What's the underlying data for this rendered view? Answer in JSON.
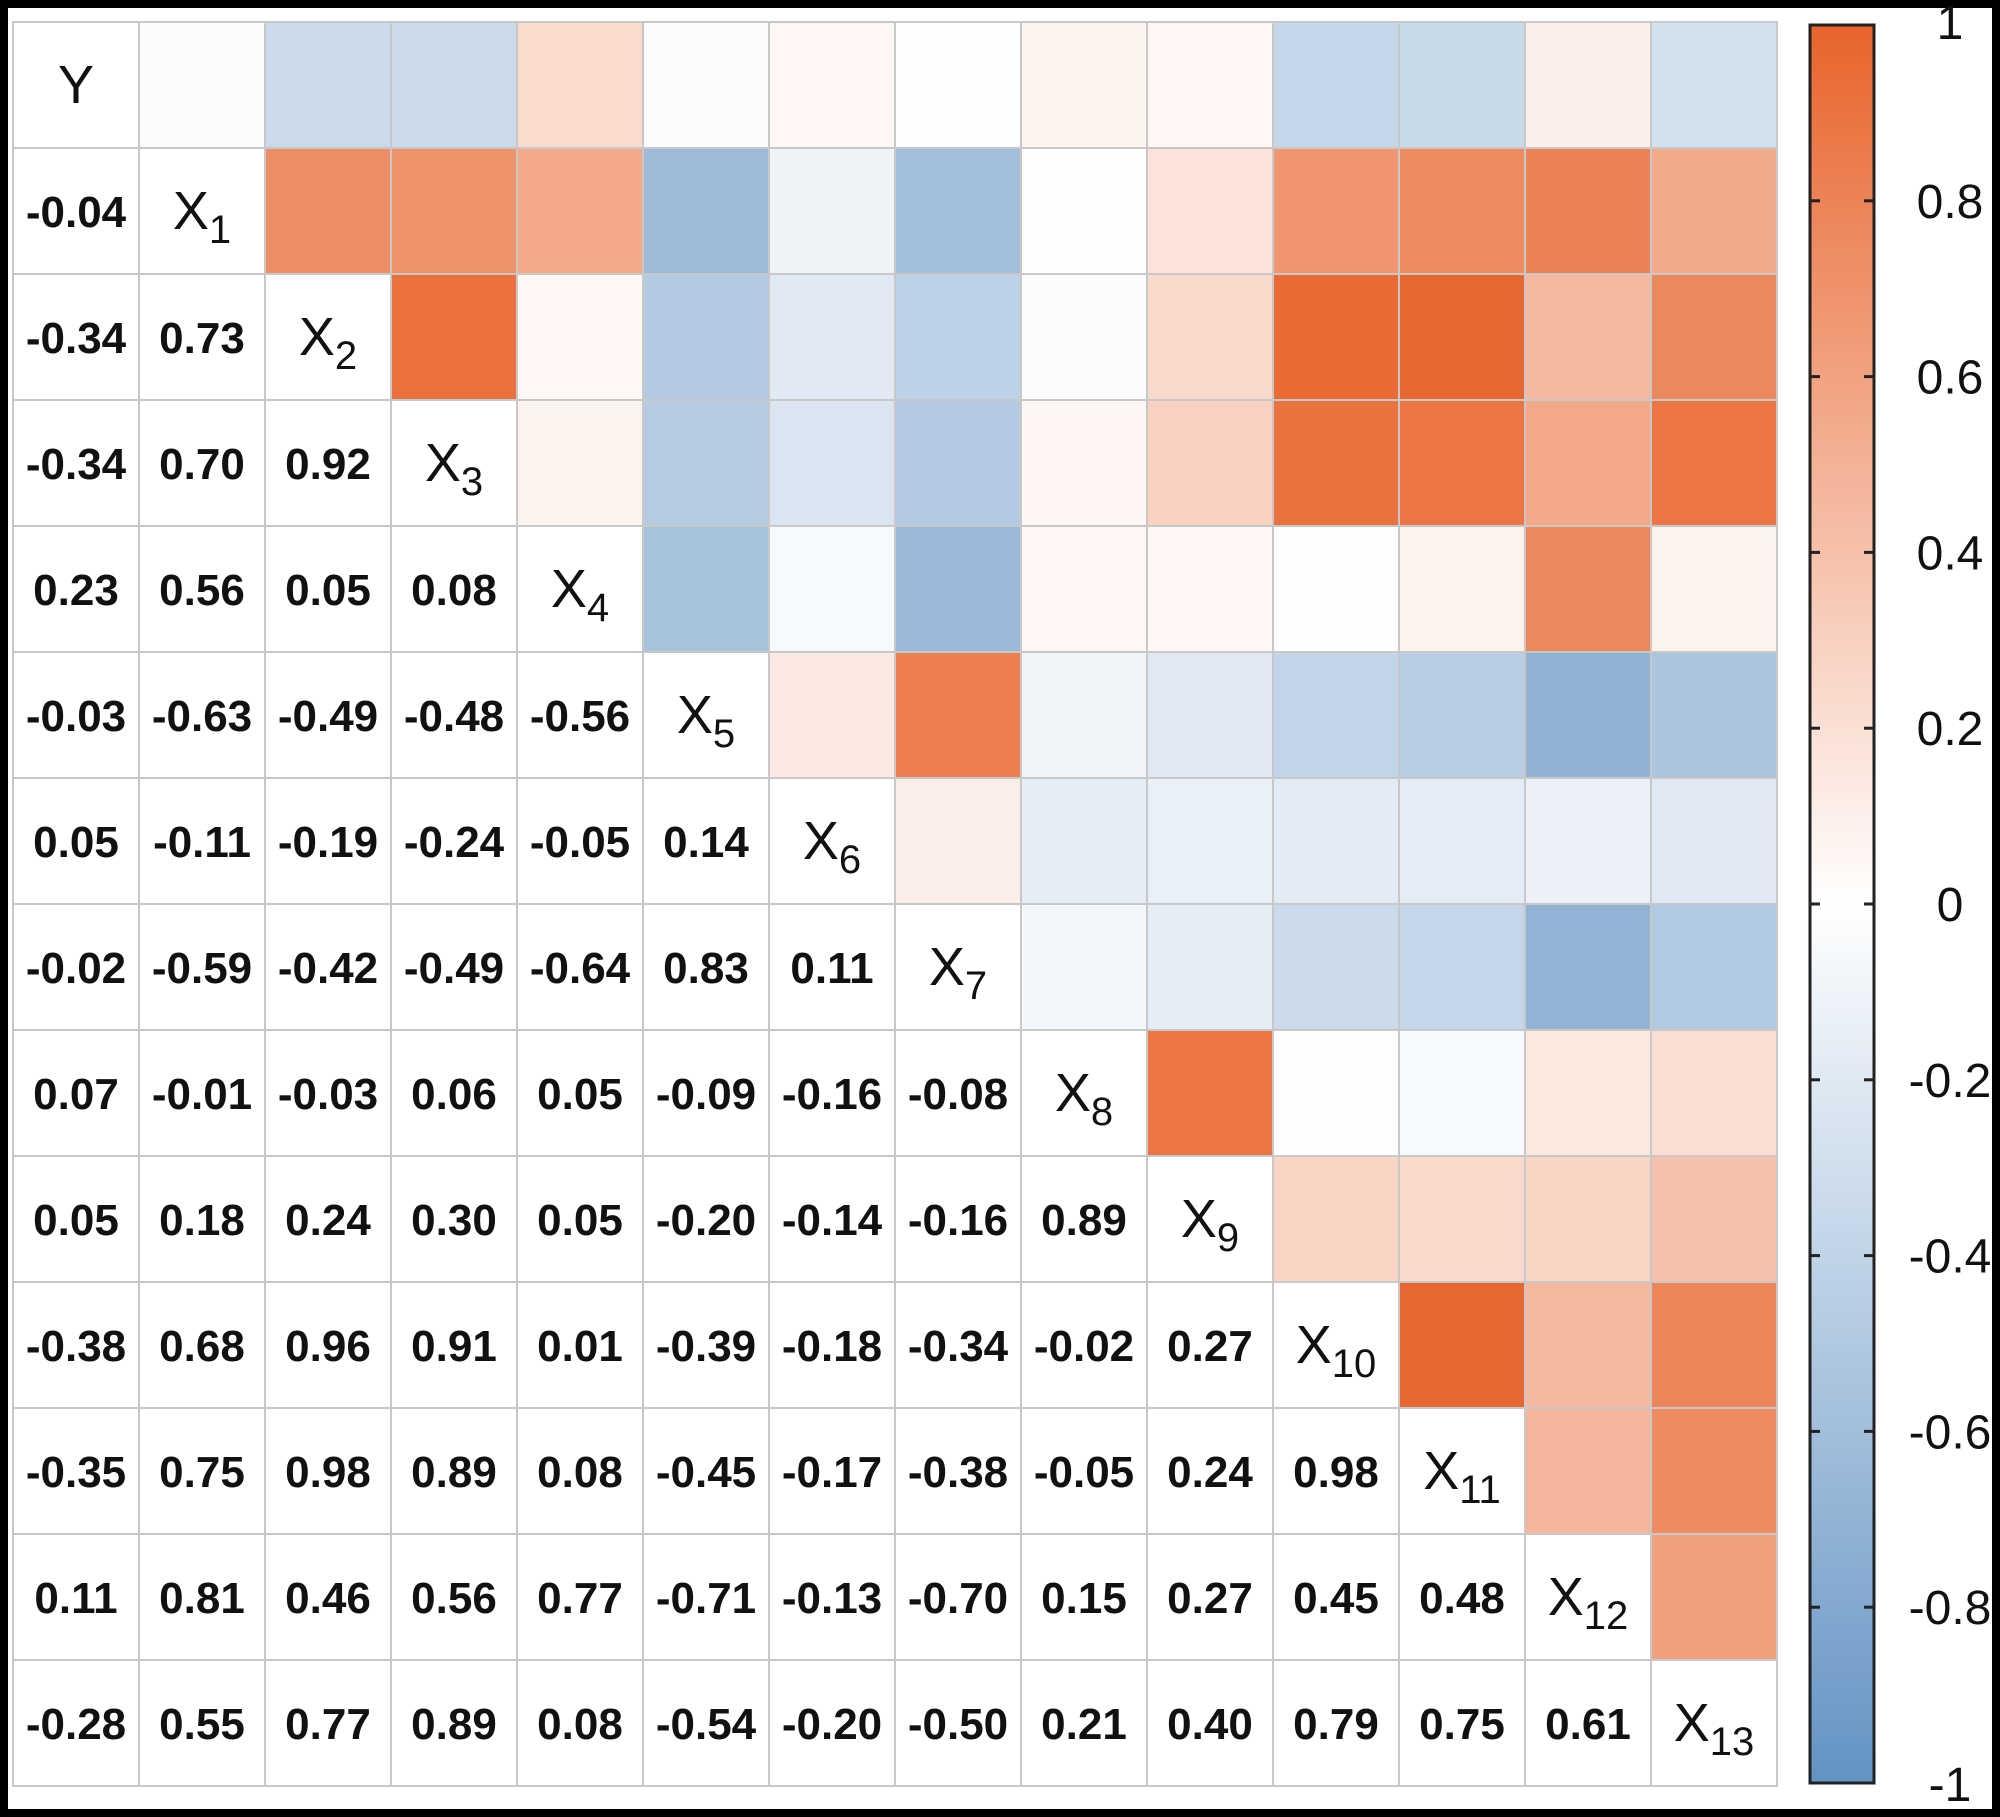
{
  "chart_data": {
    "type": "heatmap",
    "title": "",
    "variables": [
      {
        "base": "Y",
        "sub": ""
      },
      {
        "base": "X",
        "sub": "1"
      },
      {
        "base": "X",
        "sub": "2"
      },
      {
        "base": "X",
        "sub": "3"
      },
      {
        "base": "X",
        "sub": "4"
      },
      {
        "base": "X",
        "sub": "5"
      },
      {
        "base": "X",
        "sub": "6"
      },
      {
        "base": "X",
        "sub": "7"
      },
      {
        "base": "X",
        "sub": "8"
      },
      {
        "base": "X",
        "sub": "9"
      },
      {
        "base": "X",
        "sub": "10"
      },
      {
        "base": "X",
        "sub": "11"
      },
      {
        "base": "X",
        "sub": "12"
      },
      {
        "base": "X",
        "sub": "13"
      }
    ],
    "lower_triangle_values": [
      [],
      [
        "-0.04"
      ],
      [
        "-0.34",
        "0.73"
      ],
      [
        "-0.34",
        "0.70",
        "0.92"
      ],
      [
        "0.23",
        "0.56",
        "0.05",
        "0.08"
      ],
      [
        "-0.03",
        "-0.63",
        "-0.49",
        "-0.48",
        "-0.56"
      ],
      [
        "0.05",
        "-0.11",
        "-0.19",
        "-0.24",
        "-0.05",
        "0.14"
      ],
      [
        "-0.02",
        "-0.59",
        "-0.42",
        "-0.49",
        "-0.64",
        "0.83",
        "0.11"
      ],
      [
        "0.07",
        "-0.01",
        "-0.03",
        "0.06",
        "0.05",
        "-0.09",
        "-0.16",
        "-0.08"
      ],
      [
        "0.05",
        "0.18",
        "0.24",
        "0.30",
        "0.05",
        "-0.20",
        "-0.14",
        "-0.16",
        "0.89"
      ],
      [
        "-0.38",
        "0.68",
        "0.96",
        "0.91",
        "0.01",
        "-0.39",
        "-0.18",
        "-0.34",
        "-0.02",
        "0.27"
      ],
      [
        "-0.35",
        "0.75",
        "0.98",
        "0.89",
        "0.08",
        "-0.45",
        "-0.17",
        "-0.38",
        "-0.05",
        "0.24",
        "0.98"
      ],
      [
        "0.11",
        "0.81",
        "0.46",
        "0.56",
        "0.77",
        "-0.71",
        "-0.13",
        "-0.70",
        "0.15",
        "0.27",
        "0.45",
        "0.48"
      ],
      [
        "-0.28",
        "0.55",
        "0.77",
        "0.89",
        "0.08",
        "-0.54",
        "-0.20",
        "-0.50",
        "0.21",
        "0.40",
        "0.79",
        "0.75",
        "0.61"
      ]
    ],
    "upper_triangle_display": "color-filled squares mirroring the lower-triangle correlation values",
    "color_scale": {
      "range": [
        -1,
        1
      ],
      "negative_color": "#6393c3",
      "zero_color": "#ffffff",
      "positive_color": "#e8642c",
      "tick_labels": [
        "1",
        "0.8",
        "0.6",
        "0.4",
        "0.2",
        "0",
        "-0.2",
        "-0.4",
        "-0.6",
        "-0.8",
        "-1"
      ],
      "tick_values": [
        1,
        0.8,
        0.6,
        0.4,
        0.2,
        0,
        -0.2,
        -0.4,
        -0.6,
        -0.8,
        -1
      ],
      "placement": "right"
    },
    "grid_line_color": "#c8c8c8"
  }
}
